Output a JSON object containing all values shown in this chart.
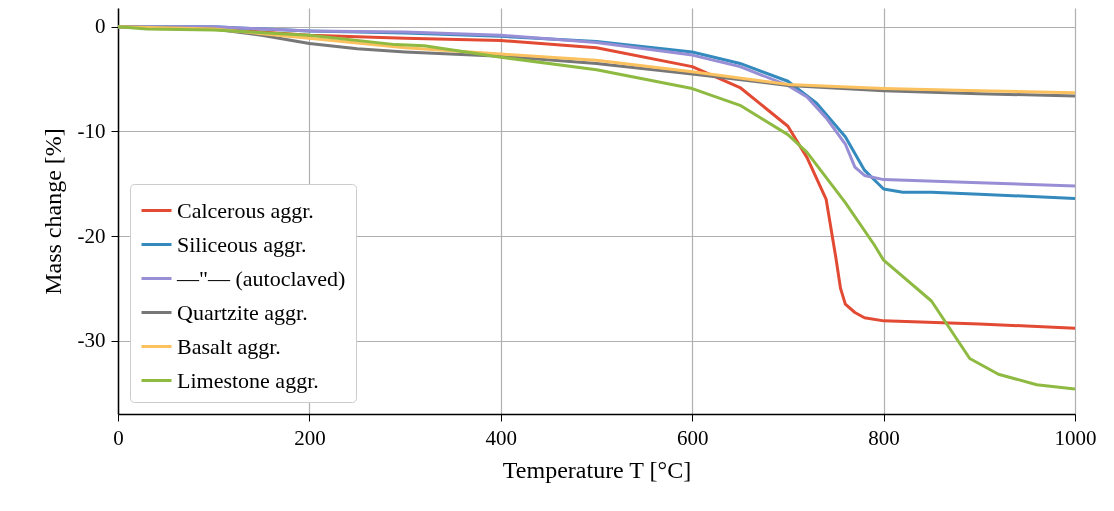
{
  "chart_data": {
    "type": "line",
    "xlabel": "Temperature T [°C]",
    "ylabel": "Mass change [%]",
    "xlim": [
      0,
      1000
    ],
    "xticks": [
      0,
      200,
      400,
      600,
      800,
      1000
    ],
    "ylim": [
      -37,
      1.8
    ],
    "yticks": [
      -30,
      -20,
      -10,
      0
    ],
    "grid": true,
    "legend": "bottom left",
    "line_style": "solid",
    "marker": "none",
    "series": [
      {
        "name": "Calcerous aggr.",
        "color": "#e24a33",
        "x": [
          0,
          100,
          200,
          300,
          400,
          500,
          600,
          650,
          700,
          720,
          740,
          750,
          755,
          760,
          770,
          780,
          800,
          900,
          1000
        ],
        "values": [
          0,
          -0.2,
          -0.8,
          -1.1,
          -1.3,
          -2,
          -3.8,
          -5.8,
          -9.5,
          -12.5,
          -16.5,
          -22,
          -25,
          -26.5,
          -27.3,
          -27.8,
          -28.1,
          -28.4,
          -28.8
        ]
      },
      {
        "name": "Siliceous aggr.",
        "color": "#348abd",
        "x": [
          0,
          100,
          200,
          300,
          400,
          500,
          600,
          650,
          700,
          730,
          760,
          780,
          800,
          820,
          850,
          900,
          1000
        ],
        "values": [
          0,
          0,
          -0.4,
          -0.6,
          -0.9,
          -1.4,
          -2.4,
          -3.5,
          -5.2,
          -7.3,
          -10.5,
          -13.7,
          -15.5,
          -15.8,
          -15.8,
          -16.0,
          -16.4
        ]
      },
      {
        "name": "—\"— (autoclaved)",
        "color": "#988ed5",
        "x": [
          0,
          100,
          200,
          300,
          400,
          500,
          600,
          650,
          700,
          720,
          740,
          760,
          770,
          780,
          800,
          900,
          1000
        ],
        "values": [
          0,
          0,
          -0.4,
          -0.5,
          -0.8,
          -1.5,
          -2.7,
          -3.8,
          -5.6,
          -6.7,
          -8.7,
          -11.2,
          -13.4,
          -14.2,
          -14.6,
          -14.9,
          -15.2
        ]
      },
      {
        "name": "Quartzite aggr.",
        "color": "#777777",
        "x": [
          0,
          100,
          150,
          200,
          250,
          300,
          400,
          500,
          600,
          700,
          800,
          900,
          1000
        ],
        "values": [
          0,
          -0.2,
          -0.8,
          -1.6,
          -2.1,
          -2.4,
          -2.8,
          -3.5,
          -4.5,
          -5.6,
          -6.1,
          -6.4,
          -6.6
        ]
      },
      {
        "name": "Basalt aggr.",
        "color": "#fbc15e",
        "x": [
          0,
          100,
          200,
          300,
          400,
          500,
          600,
          700,
          800,
          900,
          1000
        ],
        "values": [
          0,
          -0.2,
          -1.1,
          -2.0,
          -2.6,
          -3.2,
          -4.3,
          -5.5,
          -5.9,
          -6.1,
          -6.3
        ]
      },
      {
        "name": "Limestone aggr.",
        "color": "#8eba42",
        "x": [
          0,
          30,
          100,
          200,
          290,
          320,
          400,
          500,
          600,
          650,
          700,
          720,
          760,
          790,
          800,
          850,
          890,
          920,
          960,
          1000
        ],
        "values": [
          0,
          -0.2,
          -0.3,
          -0.8,
          -1.7,
          -1.8,
          -2.9,
          -4.1,
          -5.9,
          -7.5,
          -10.3,
          -12,
          -16.8,
          -20.8,
          -22.3,
          -26.2,
          -31.7,
          -33.2,
          -34.2,
          -34.6
        ]
      }
    ]
  }
}
